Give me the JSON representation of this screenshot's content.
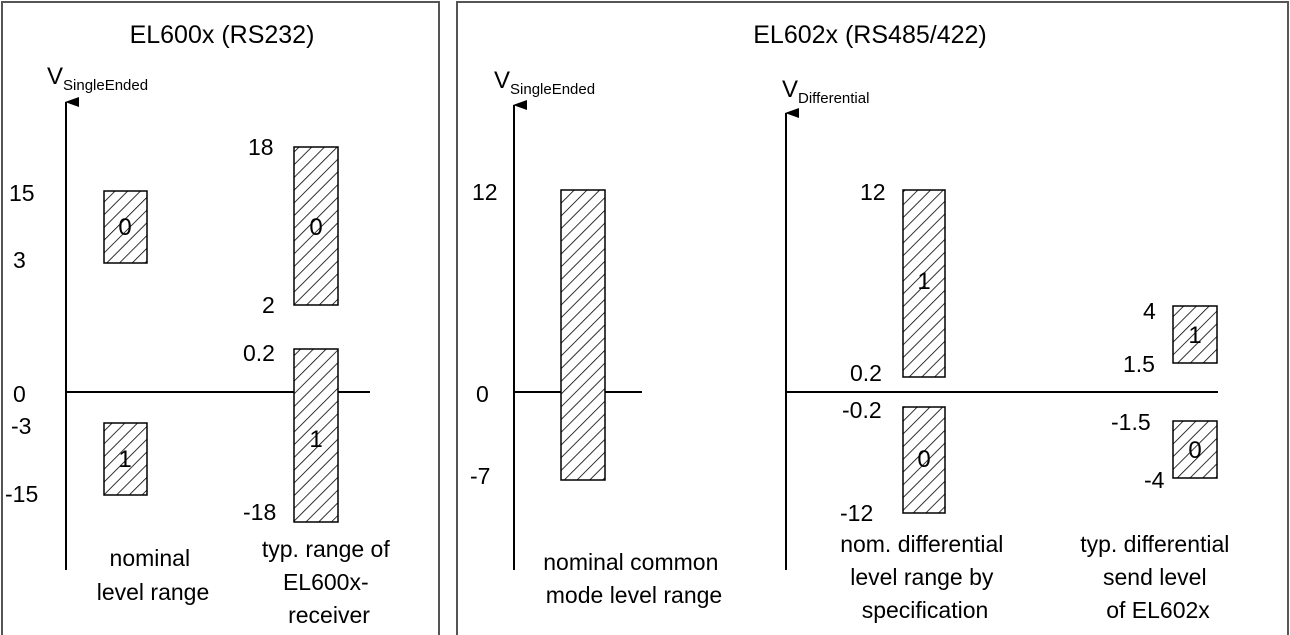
{
  "panels": [
    {
      "title": "EL600x (RS232)",
      "axes": [
        {
          "label": "V",
          "label_sub": "SingleEnded",
          "ticks": [
            "15",
            "3",
            "0",
            "-3",
            "-15"
          ],
          "bars": [
            {
              "bit": "0",
              "range": [
                3,
                15
              ]
            },
            {
              "bit": "1",
              "range": [
                -15,
                -3
              ]
            }
          ],
          "caption": [
            "nominal",
            "level range"
          ]
        },
        {
          "ticks": [
            "18",
            "2",
            "0.2",
            "-18"
          ],
          "bars": [
            {
              "bit": "0",
              "range": [
                2,
                18
              ]
            },
            {
              "bit": "1",
              "range": [
                -18,
                0.2
              ]
            }
          ],
          "caption": [
            "typ. range of",
            "EL600x-",
            "receiver"
          ]
        }
      ]
    },
    {
      "title": "EL602x (RS485/422)",
      "axes": [
        {
          "label": "V",
          "label_sub": "SingleEnded",
          "ticks": [
            "12",
            "0",
            "-7"
          ],
          "bars": [
            {
              "range": [
                -7,
                12
              ]
            }
          ],
          "caption": [
            "nominal common",
            "mode level range"
          ]
        },
        {
          "label": "V",
          "label_sub": "Differential",
          "ticks": [
            "12",
            "0.2",
            "-0.2",
            "-12"
          ],
          "bars": [
            {
              "bit": "1",
              "range": [
                0.2,
                12
              ]
            },
            {
              "bit": "0",
              "range": [
                -12,
                -0.2
              ]
            }
          ],
          "caption": [
            "nom. differential",
            "level range by",
            "specification"
          ]
        },
        {
          "ticks": [
            "4",
            "1.5",
            "-1.5",
            "-4"
          ],
          "bars": [
            {
              "bit": "1",
              "range": [
                1.5,
                4
              ]
            },
            {
              "bit": "0",
              "range": [
                -4,
                -1.5
              ]
            }
          ],
          "caption": [
            "typ. differential",
            "send level",
            "of EL602x"
          ]
        }
      ]
    }
  ]
}
